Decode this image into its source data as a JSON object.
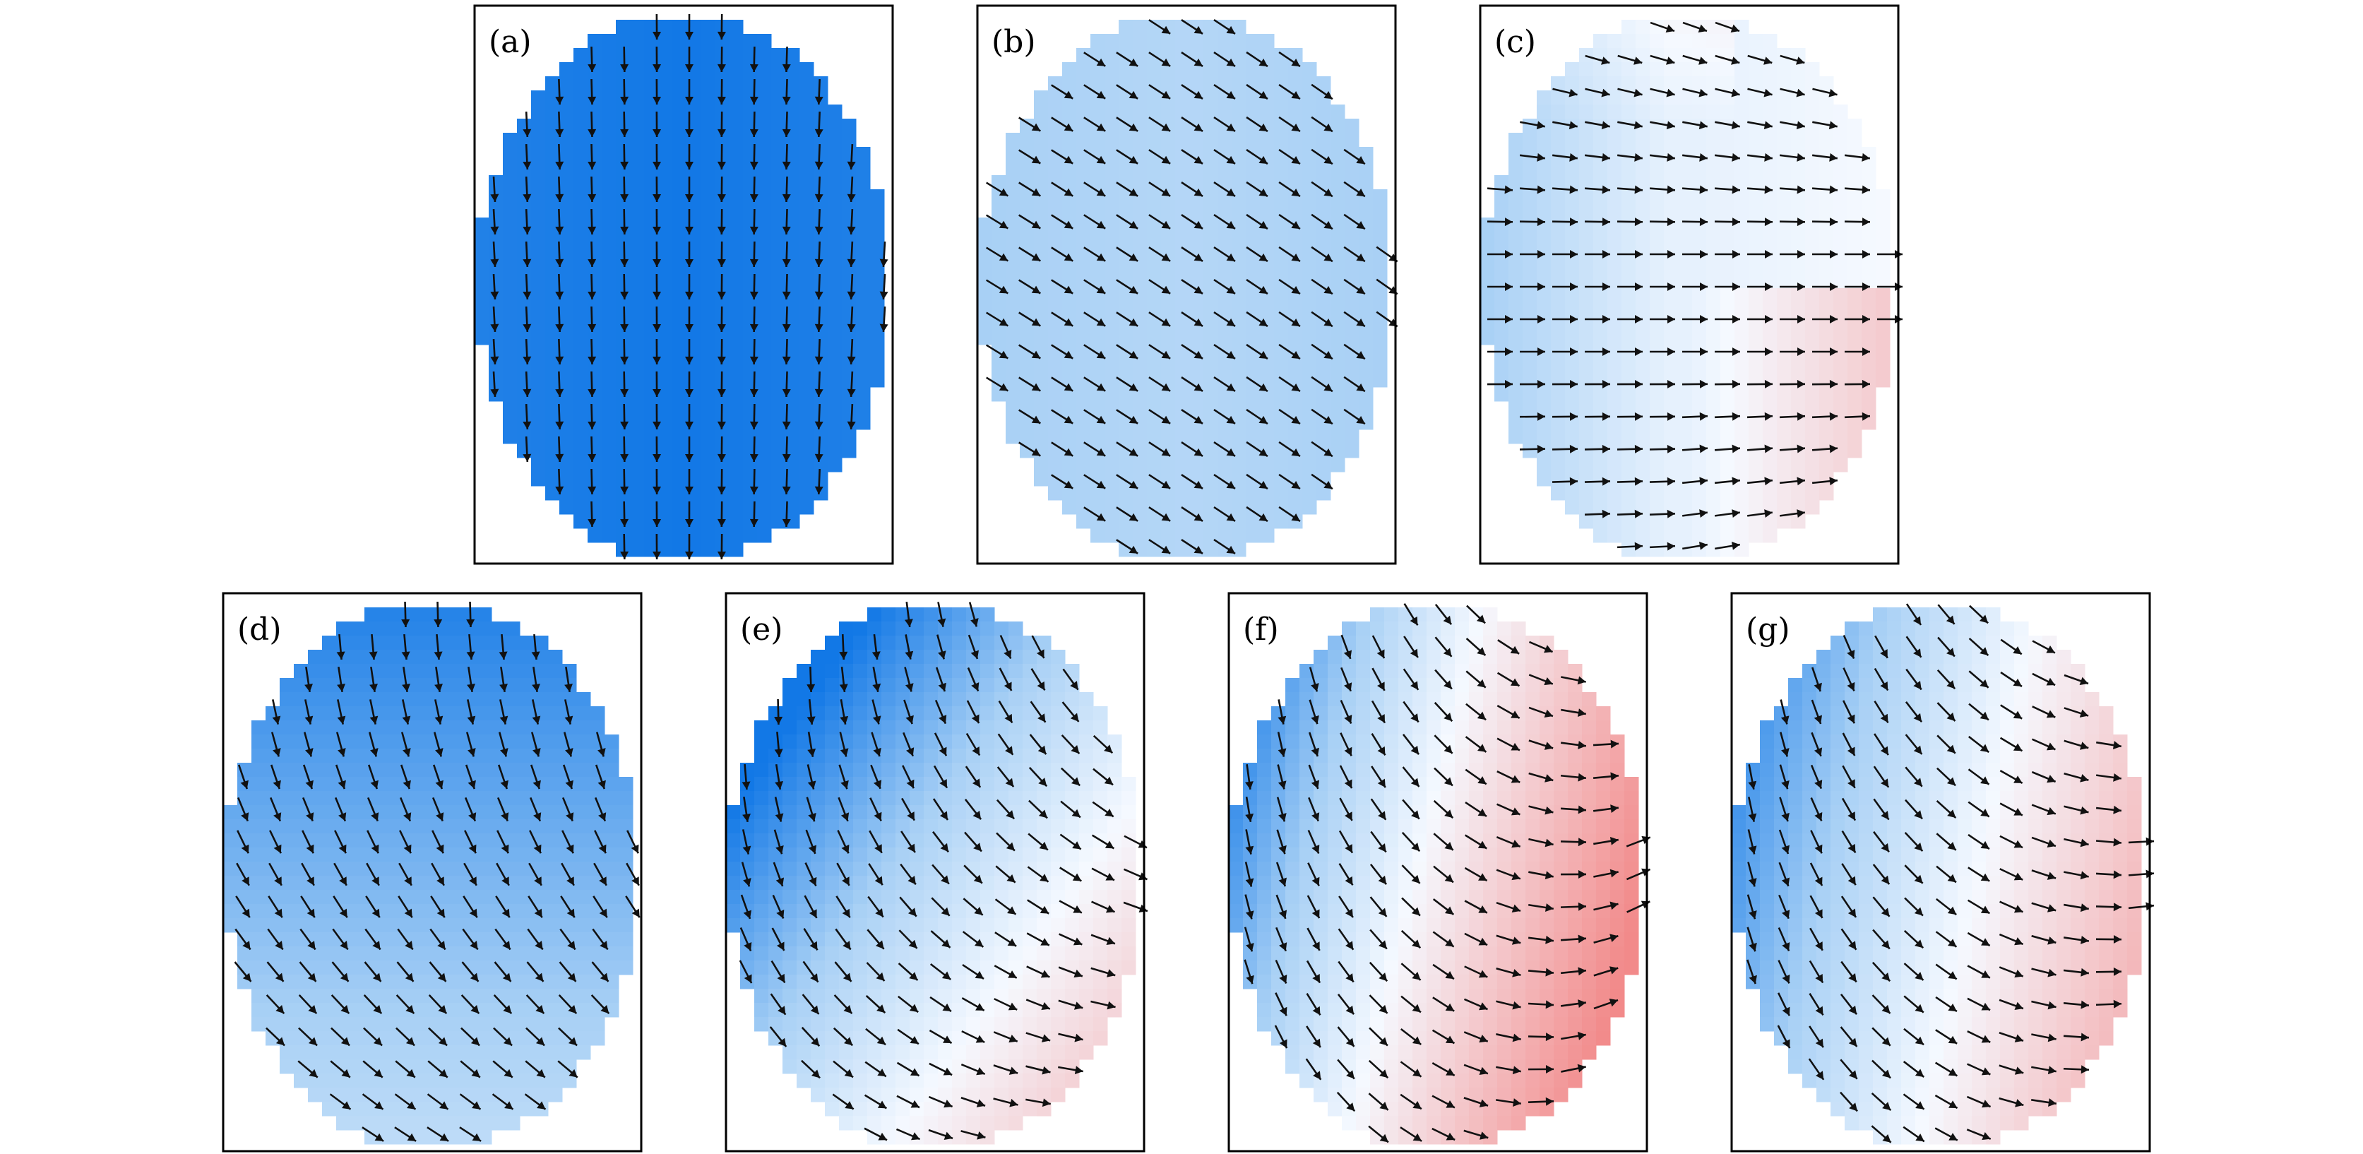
{
  "figure": {
    "panels": [
      {
        "label": "(a)",
        "pattern": "vertical-down",
        "tint": "strong-blue"
      },
      {
        "label": "(b)",
        "pattern": "diagonal-down-right",
        "tint": "light-blue"
      },
      {
        "label": "(c)",
        "pattern": "horizontal-right",
        "tint": "blue-white-red"
      },
      {
        "label": "(d)",
        "pattern": "down-to-diagonal",
        "tint": "blue-gradient"
      },
      {
        "label": "(e)",
        "pattern": "down-to-right",
        "tint": "blue-to-red"
      },
      {
        "label": "(f)",
        "pattern": "down-to-up-right",
        "tint": "blue-to-red-strong"
      },
      {
        "label": "(g)",
        "pattern": "down-to-right-curl",
        "tint": "blue-to-red"
      }
    ],
    "colors": {
      "frame": "#000000",
      "strong_blue": "#1278e6",
      "light_blue": "#a8d0f5",
      "white": "#f5f9ff",
      "red": "#f28a8a",
      "arrow": "#111111"
    }
  }
}
